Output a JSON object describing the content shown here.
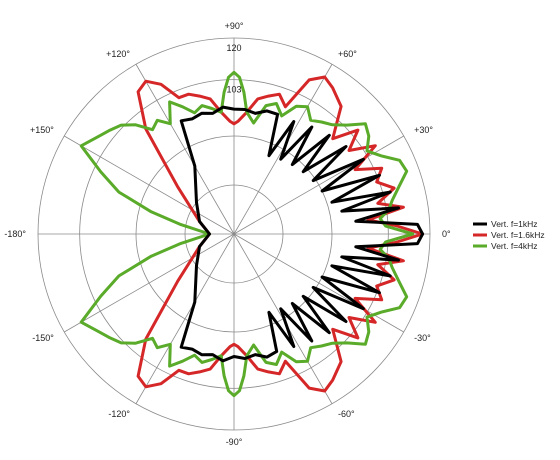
{
  "chart_data": {
    "type": "polar-line",
    "title": "",
    "radial_ticks": [
      "103",
      "120"
    ],
    "angle_labels": [
      "0°",
      "+30°",
      "+60°",
      "+90°",
      "+120°",
      "+150°",
      "-180°",
      "-150°",
      "-120°",
      "-90°",
      "-60°",
      "-30°"
    ],
    "angle_values": [
      0,
      30,
      60,
      90,
      120,
      150,
      180,
      -150,
      -120,
      -90,
      -60,
      -30
    ],
    "grid": true,
    "legend_position": "right",
    "series": [
      {
        "name": "Vert. f=1kHz",
        "color": "#000000",
        "points": [
          [
            0,
            117
          ],
          [
            3,
            115
          ],
          [
            6,
            90
          ],
          [
            9,
            108
          ],
          [
            12,
            85
          ],
          [
            15,
            106
          ],
          [
            18,
            82
          ],
          [
            22,
            104
          ],
          [
            26,
            80
          ],
          [
            30,
            101
          ],
          [
            34,
            79
          ],
          [
            38,
            98
          ],
          [
            42,
            78
          ],
          [
            46,
            96
          ],
          [
            50,
            77
          ],
          [
            54,
            94
          ],
          [
            58,
            76
          ],
          [
            62,
            92
          ],
          [
            66,
            75
          ],
          [
            70,
            92
          ],
          [
            75,
            92
          ],
          [
            80,
            90
          ],
          [
            85,
            91
          ],
          [
            90,
            91
          ],
          [
            95,
            92
          ],
          [
            100,
            90
          ],
          [
            105,
            91
          ],
          [
            110,
            90
          ],
          [
            115,
            91
          ],
          [
            120,
            72
          ],
          [
            140,
            60
          ],
          [
            160,
            55
          ],
          [
            180,
            50
          ],
          [
            -160,
            55
          ],
          [
            -140,
            60
          ],
          [
            -120,
            72
          ],
          [
            -115,
            91
          ],
          [
            -110,
            90
          ],
          [
            -105,
            91
          ],
          [
            -100,
            90
          ],
          [
            -95,
            92
          ],
          [
            -90,
            90
          ],
          [
            -85,
            91
          ],
          [
            -80,
            90
          ],
          [
            -75,
            92
          ],
          [
            -70,
            91
          ],
          [
            -66,
            75
          ],
          [
            -62,
            92
          ],
          [
            -58,
            76
          ],
          [
            -54,
            94
          ],
          [
            -50,
            77
          ],
          [
            -46,
            96
          ],
          [
            -42,
            78
          ],
          [
            -38,
            98
          ],
          [
            -34,
            79
          ],
          [
            -30,
            101
          ],
          [
            -26,
            80
          ],
          [
            -22,
            104
          ],
          [
            -18,
            82
          ],
          [
            -15,
            106
          ],
          [
            -12,
            85
          ],
          [
            -9,
            108
          ],
          [
            -6,
            90
          ],
          [
            -3,
            115
          ]
        ]
      },
      {
        "name": "Vert. f=1.6kHz",
        "color": "#d62728",
        "points": [
          [
            0,
            117
          ],
          [
            3,
            106
          ],
          [
            6,
            95
          ],
          [
            9,
            110
          ],
          [
            12,
            100
          ],
          [
            16,
            108
          ],
          [
            20,
            102
          ],
          [
            24,
            106
          ],
          [
            28,
            96
          ],
          [
            32,
            108
          ],
          [
            36,
            98
          ],
          [
            40,
            106
          ],
          [
            44,
            96
          ],
          [
            50,
            108
          ],
          [
            56,
            112
          ],
          [
            60,
            114
          ],
          [
            64,
            110
          ],
          [
            68,
            96
          ],
          [
            72,
            100
          ],
          [
            76,
            98
          ],
          [
            80,
            96
          ],
          [
            84,
            90
          ],
          [
            88,
            86
          ],
          [
            90,
            85
          ],
          [
            92,
            86
          ],
          [
            96,
            90
          ],
          [
            100,
            96
          ],
          [
            104,
            98
          ],
          [
            108,
            100
          ],
          [
            112,
            100
          ],
          [
            116,
            108
          ],
          [
            120,
            112
          ],
          [
            124,
            110
          ],
          [
            130,
            96
          ],
          [
            140,
            70
          ],
          [
            160,
            55
          ],
          [
            180,
            50
          ],
          [
            -160,
            55
          ],
          [
            -140,
            70
          ],
          [
            -130,
            96
          ],
          [
            -124,
            110
          ],
          [
            -120,
            112
          ],
          [
            -116,
            108
          ],
          [
            -112,
            100
          ],
          [
            -108,
            100
          ],
          [
            -104,
            98
          ],
          [
            -100,
            96
          ],
          [
            -96,
            90
          ],
          [
            -92,
            86
          ],
          [
            -90,
            85
          ],
          [
            -88,
            86
          ],
          [
            -84,
            90
          ],
          [
            -80,
            96
          ],
          [
            -76,
            98
          ],
          [
            -72,
            100
          ],
          [
            -68,
            96
          ],
          [
            -64,
            110
          ],
          [
            -60,
            114
          ],
          [
            -56,
            112
          ],
          [
            -50,
            108
          ],
          [
            -44,
            96
          ],
          [
            -40,
            106
          ],
          [
            -36,
            98
          ],
          [
            -32,
            108
          ],
          [
            -28,
            96
          ],
          [
            -24,
            106
          ],
          [
            -20,
            102
          ],
          [
            -16,
            108
          ],
          [
            -12,
            100
          ],
          [
            -9,
            110
          ],
          [
            -6,
            95
          ],
          [
            -3,
            106
          ]
        ]
      },
      {
        "name": "Vert. f=4kHz",
        "color": "#5aab2a",
        "points": [
          [
            0,
            113
          ],
          [
            3,
            102
          ],
          [
            6,
            100
          ],
          [
            9,
            104
          ],
          [
            12,
            106
          ],
          [
            16,
            110
          ],
          [
            20,
            115
          ],
          [
            24,
            114
          ],
          [
            28,
            108
          ],
          [
            32,
            104
          ],
          [
            36,
            108
          ],
          [
            40,
            110
          ],
          [
            44,
            104
          ],
          [
            48,
            100
          ],
          [
            52,
            98
          ],
          [
            56,
            96
          ],
          [
            60,
            100
          ],
          [
            64,
            98
          ],
          [
            68,
            92
          ],
          [
            72,
            96
          ],
          [
            76,
            94
          ],
          [
            80,
            86
          ],
          [
            84,
            90
          ],
          [
            86,
            98
          ],
          [
            88,
            104
          ],
          [
            90,
            106
          ],
          [
            92,
            104
          ],
          [
            94,
            98
          ],
          [
            96,
            90
          ],
          [
            100,
            92
          ],
          [
            104,
            94
          ],
          [
            108,
            92
          ],
          [
            112,
            96
          ],
          [
            116,
            100
          ],
          [
            120,
            92
          ],
          [
            124,
            96
          ],
          [
            128,
            94
          ],
          [
            132,
            100
          ],
          [
            136,
            104
          ],
          [
            140,
            106
          ],
          [
            144,
            108
          ],
          [
            150,
            112
          ],
          [
            155,
            100
          ],
          [
            160,
            90
          ],
          [
            165,
            75
          ],
          [
            170,
            62
          ],
          [
            180,
            50
          ],
          [
            -170,
            62
          ],
          [
            -165,
            75
          ],
          [
            -160,
            90
          ],
          [
            -155,
            100
          ],
          [
            -150,
            112
          ],
          [
            -144,
            108
          ],
          [
            -140,
            106
          ],
          [
            -136,
            104
          ],
          [
            -132,
            100
          ],
          [
            -128,
            94
          ],
          [
            -124,
            96
          ],
          [
            -120,
            92
          ],
          [
            -116,
            100
          ],
          [
            -112,
            96
          ],
          [
            -108,
            92
          ],
          [
            -104,
            94
          ],
          [
            -100,
            92
          ],
          [
            -96,
            90
          ],
          [
            -94,
            98
          ],
          [
            -92,
            104
          ],
          [
            -90,
            106
          ],
          [
            -88,
            104
          ],
          [
            -86,
            98
          ],
          [
            -84,
            90
          ],
          [
            -80,
            86
          ],
          [
            -76,
            94
          ],
          [
            -72,
            96
          ],
          [
            -68,
            92
          ],
          [
            -64,
            98
          ],
          [
            -60,
            100
          ],
          [
            -56,
            96
          ],
          [
            -52,
            98
          ],
          [
            -48,
            100
          ],
          [
            -44,
            104
          ],
          [
            -40,
            110
          ],
          [
            -36,
            108
          ],
          [
            -32,
            104
          ],
          [
            -28,
            108
          ],
          [
            -24,
            114
          ],
          [
            -20,
            115
          ],
          [
            -16,
            110
          ],
          [
            -12,
            106
          ],
          [
            -9,
            104
          ],
          [
            -6,
            100
          ],
          [
            -3,
            102
          ]
        ]
      }
    ],
    "r_min": 40,
    "r_max": 120,
    "grid_rings": [
      60,
      80,
      103,
      120
    ]
  }
}
